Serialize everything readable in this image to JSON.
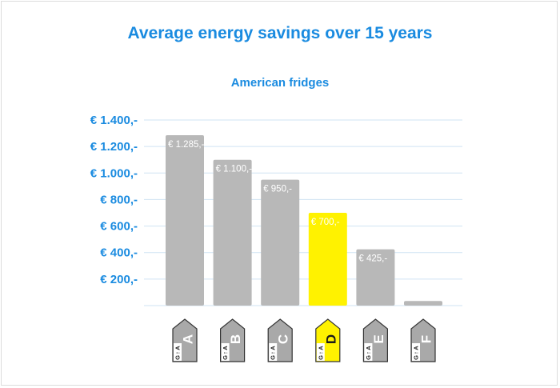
{
  "chart_data": {
    "type": "bar",
    "title": "Average energy savings over 15 years",
    "subtitle": "American fridges",
    "categories": [
      "A",
      "B",
      "C",
      "D",
      "E",
      "F"
    ],
    "values": [
      1285,
      1100,
      950,
      700,
      425,
      35
    ],
    "data_labels": [
      "€ 1.285,-",
      "€ 1.100,-",
      "€ 950,-",
      "€ 700,-",
      "€ 425,-",
      ""
    ],
    "highlight_index": 3,
    "yticks": [
      200,
      400,
      600,
      800,
      1000,
      1200,
      1400
    ],
    "ytick_labels": [
      "€ 200,-",
      "€ 400,-",
      "€ 600,-",
      "€ 800,-",
      "€ 1.000,-",
      "€ 1.200,-",
      "€ 1.400,-"
    ],
    "ylim": [
      0,
      1400
    ],
    "grid": true,
    "label_scale": {
      "top": "A",
      "bottom": "G",
      "arrow": "↑"
    },
    "colors": {
      "bar": "#b8b8b8",
      "highlight": "#fff200",
      "title": "#1a8be0",
      "grid": "#cfe3f3",
      "label_bg": "#a9a9a9",
      "label_border": "#333333"
    }
  }
}
